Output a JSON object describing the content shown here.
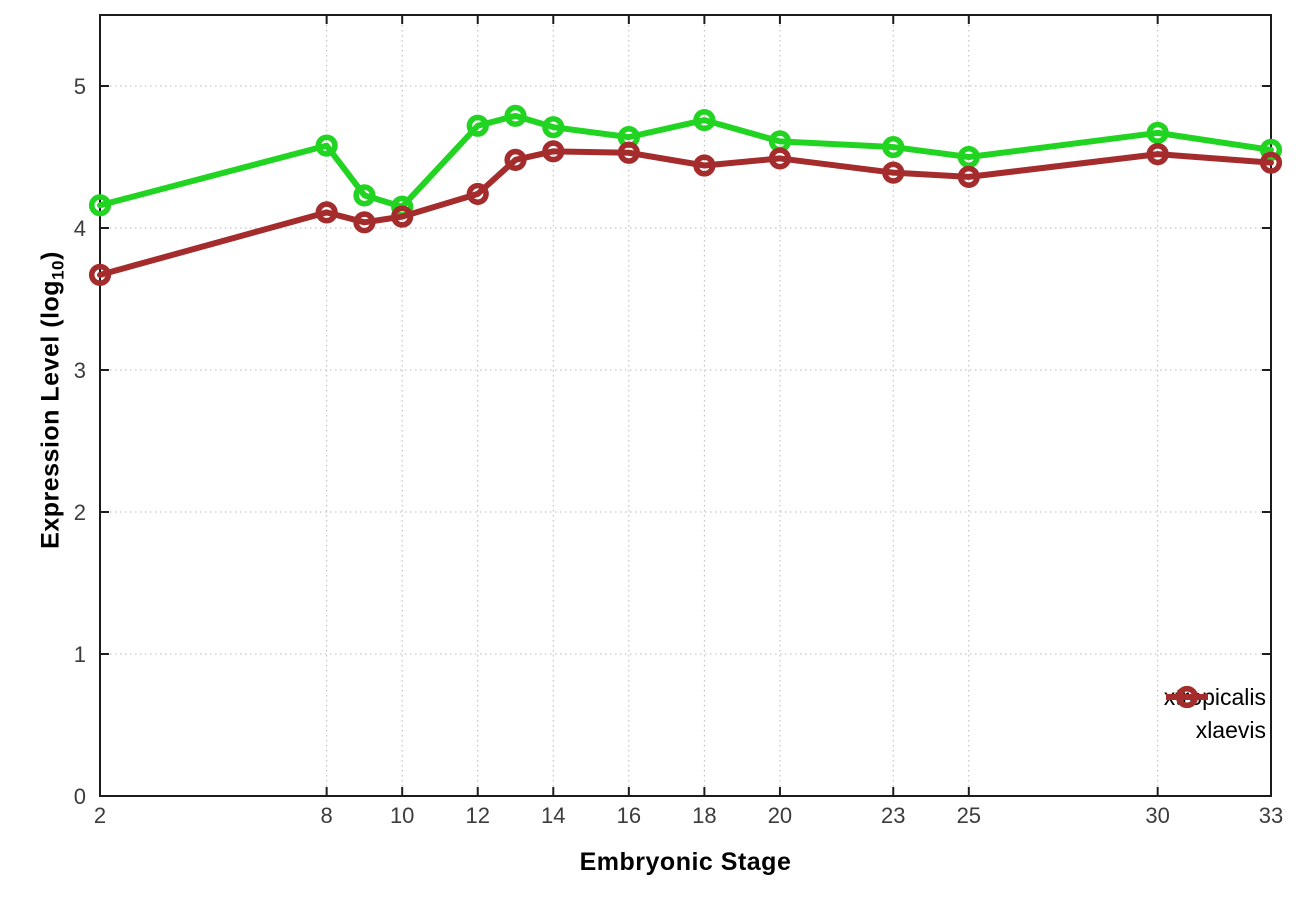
{
  "chart_data": {
    "type": "line",
    "title": "",
    "xlabel": "Embryonic Stage",
    "ylabel": "Expression Level (log10)",
    "ylabel_parts": {
      "main": "Expression Level (log",
      "sub": "10",
      "end": ")"
    },
    "x": [
      2,
      8,
      9,
      10,
      12,
      13,
      14,
      16,
      18,
      20,
      23,
      25,
      30,
      33
    ],
    "series": [
      {
        "name": "xtropicalis",
        "color": "#22d422",
        "values": [
          4.16,
          4.58,
          4.23,
          4.15,
          4.72,
          4.79,
          4.71,
          4.64,
          4.76,
          4.61,
          4.57,
          4.5,
          4.67,
          4.55
        ]
      },
      {
        "name": "xlaevis",
        "color": "#a52c2c",
        "values": [
          3.67,
          4.11,
          4.04,
          4.08,
          4.24,
          4.48,
          4.54,
          4.53,
          4.44,
          4.49,
          4.39,
          4.36,
          4.52,
          4.46
        ]
      }
    ],
    "xticks": [
      2,
      8,
      10,
      12,
      14,
      16,
      18,
      20,
      23,
      25,
      30,
      33
    ],
    "yticks": [
      0,
      1,
      2,
      3,
      4,
      5
    ],
    "xlim": [
      2,
      33
    ],
    "ylim": [
      0,
      5.5
    ],
    "grid": true,
    "legend_position": "inside-bottom-right",
    "colors": {
      "axis": "#1c1c1c",
      "grid": "#b8b8b8",
      "tick_label": "#3c3c3c",
      "background": "#ffffff"
    }
  }
}
